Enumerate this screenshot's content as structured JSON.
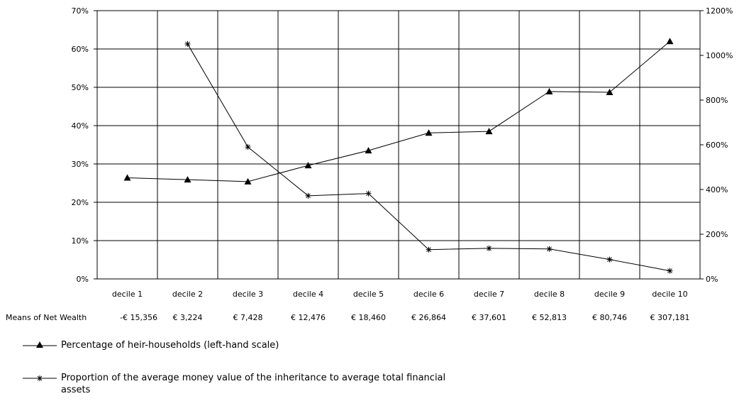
{
  "chart_data": {
    "type": "line",
    "categories": [
      "decile 1",
      "decile 2",
      "decile 3",
      "decile 4",
      "decile 5",
      "decile 6",
      "decile 7",
      "decile 8",
      "decile 9",
      "decile 10"
    ],
    "row_label": "Means of Net Wealth",
    "means_net_wealth": [
      "-€ 15,356",
      "€ 3,224",
      "€ 7,428",
      "€ 12,476",
      "€ 18,460",
      "€ 26,864",
      "€ 37,601",
      "€ 52,813",
      "€ 80,746",
      "€ 307,181"
    ],
    "y_left": {
      "ylim": [
        0,
        70
      ],
      "ticks": [
        0,
        10,
        20,
        30,
        40,
        50,
        60,
        70
      ],
      "tick_labels": [
        "0%",
        "10%",
        "20%",
        "30%",
        "40%",
        "50%",
        "60%",
        "70%"
      ]
    },
    "y_right": {
      "ylim": [
        0,
        1200
      ],
      "ticks": [
        0,
        200,
        400,
        600,
        800,
        1000,
        1200
      ],
      "tick_labels": [
        "0%",
        "200%",
        "400%",
        "600%",
        "800%",
        "1000%",
        "1200%"
      ]
    },
    "grid": true,
    "series": [
      {
        "name": "Percentage of heir-households (left-hand scale)",
        "axis": "left",
        "marker": "triangle",
        "values": [
          26.4,
          25.9,
          25.4,
          29.6,
          33.5,
          38.1,
          38.5,
          48.9,
          48.7,
          62.0
        ]
      },
      {
        "name": "Proportion of the average money value of the inheritance to average total financial assets",
        "axis": "right",
        "marker": "asterisk",
        "values": [
          null,
          1051,
          590,
          372,
          382,
          131,
          137,
          134,
          87,
          36
        ]
      }
    ],
    "legend_position": "bottom-left"
  }
}
